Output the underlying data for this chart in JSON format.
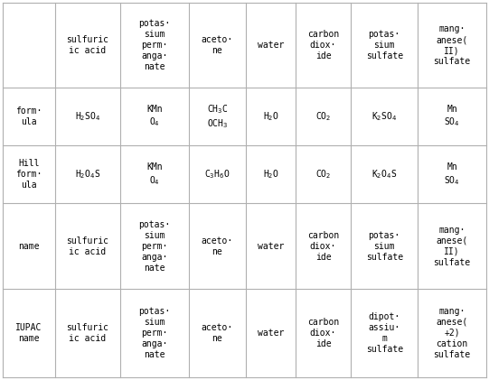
{
  "col_headers": [
    "sulfuric\nic acid",
    "potas·\nsium\nperm·\nanga·\nnate",
    "aceto·\nne",
    "water",
    "carbon\ndiox·\nide",
    "potas·\nsium\nsulfate",
    "mang·\nanese(\nII)\nsulfate"
  ],
  "row_headers": [
    "form·\nula",
    "Hill\nform·\nula",
    "name",
    "IUPAC\nname"
  ],
  "formula_row": [
    "H$_2$SO$_4$",
    "KMn\nO$_4$",
    "CH$_3$C\nOCH$_3$",
    "H$_2$O",
    "CO$_2$",
    "K$_2$SO$_4$",
    "Mn\nSO$_4$"
  ],
  "hill_row": [
    "H$_2$O$_4$S",
    "KMn\nO$_4$",
    "C$_3$H$_6$O",
    "H$_2$O",
    "CO$_2$",
    "K$_2$O$_4$S",
    "Mn\nSO$_4$"
  ],
  "name_row": [
    "sulfuric\nic acid",
    "potas·\nsium\nperm·\nanga·\nnate",
    "aceto·\nne",
    "water",
    "carbon\ndiox·\nide",
    "potas·\nsium\nsulfate",
    "mang·\nanese(\nII)\nsulfate"
  ],
  "iupac_row": [
    "sulfuric\nic acid",
    "potas·\nsium\nperm·\nanga·\nnate",
    "aceto·\nne",
    "water",
    "carbon\ndiox·\nide",
    "dipot·\nassiu·\nm\nsulfate",
    "mang·\nanese(\n+2)\ncation\nsulfate"
  ],
  "bg_color": "#ffffff",
  "line_color": "#b0b0b0",
  "text_color": "#000000",
  "font_size": 7.0
}
